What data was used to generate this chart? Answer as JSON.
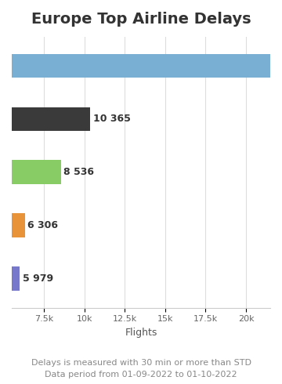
{
  "title": "Europe Top Airline Delays",
  "values": [
    21500,
    10365,
    8536,
    6306,
    5979
  ],
  "labels": [
    "",
    "10 365",
    "8 536",
    "6 306",
    "5 979"
  ],
  "bar_colors": [
    "#7aafd4",
    "#3a3a3a",
    "#88cc66",
    "#e8923a",
    "#7777cc"
  ],
  "xlabel": "Flights",
  "xlim": [
    5500,
    21500
  ],
  "xticks": [
    7500,
    10000,
    12500,
    15000,
    17500,
    20000
  ],
  "xticklabels": [
    "7.5k",
    "10k",
    "12.5k",
    "15k",
    "17.5k",
    "20k"
  ],
  "footnote1": "Delays is measured with 30 min or more than STD",
  "footnote2": "Data period from 01-09-2022 to 01-10-2022",
  "title_fontsize": 14,
  "tick_fontsize": 8,
  "xlabel_fontsize": 9,
  "label_fontsize": 9,
  "footnote_fontsize": 8,
  "background_color": "#ffffff",
  "grid_color": "#dddddd",
  "text_color": "#333333",
  "footnote_color": "#888888"
}
